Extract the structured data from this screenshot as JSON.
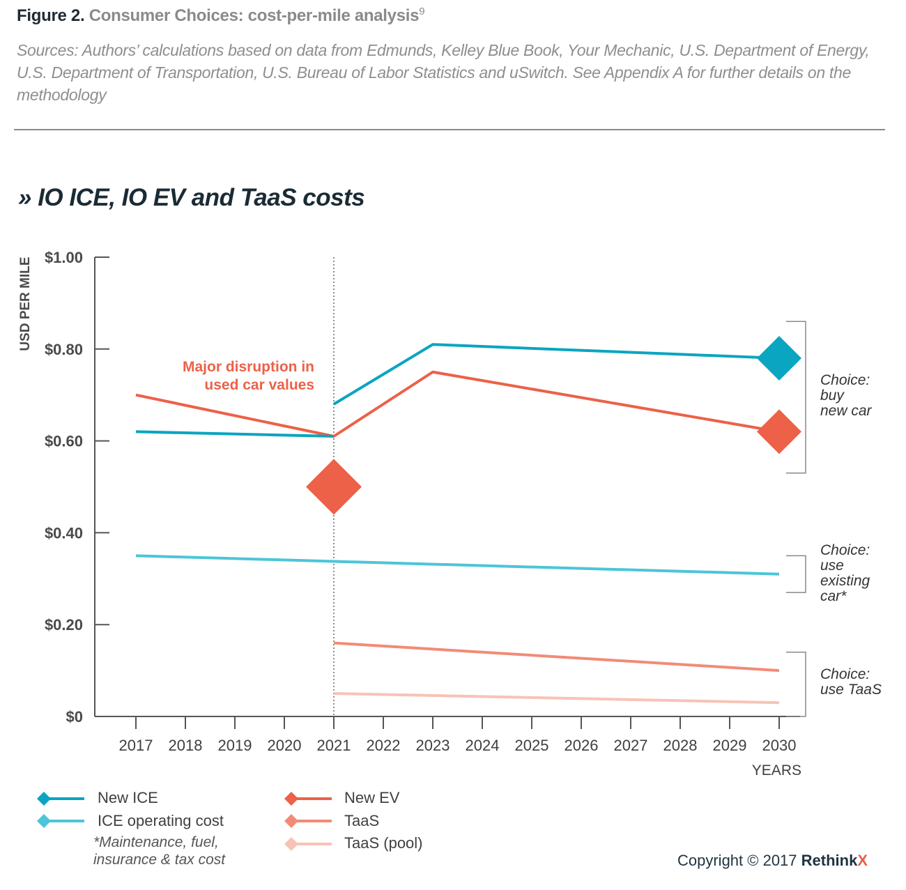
{
  "header": {
    "figure_label": "Figure 2.",
    "figure_title": "Consumer Choices: cost-per-mile analysis",
    "footnote_ref": "9",
    "sources": "Sources: Authors’ calculations based on data from Edmunds, Kelley Blue Book, Your Mechanic, U.S. Department of Energy, U.S. Department of Transportation, U.S. Bureau of Labor Statistics and uSwitch.  See Appendix A for further details on the methodology"
  },
  "chart_data": {
    "type": "line",
    "title": "» IO ICE, IO EV and TaaS costs",
    "ylabel": "USD PER MILE",
    "xlabel": "YEARS",
    "ylim": [
      0,
      1.0
    ],
    "xlim": [
      2017,
      2030
    ],
    "x_ticks": [
      "2017",
      "2018",
      "2019",
      "2020",
      "2021",
      "2022",
      "2023",
      "2024",
      "2025",
      "2026",
      "2027",
      "2028",
      "2029",
      "2030"
    ],
    "y_ticks": [
      {
        "value": 1.0,
        "label": "$1.00"
      },
      {
        "value": 0.8,
        "label": "$0.80"
      },
      {
        "value": 0.6,
        "label": "$0.60"
      },
      {
        "value": 0.4,
        "label": "$0.40"
      },
      {
        "value": 0.2,
        "label": "$0.20"
      },
      {
        "value": 0,
        "label": "$0"
      }
    ],
    "grid": false,
    "series": [
      {
        "name": "New ICE",
        "color": "#0aa5c0",
        "segments": [
          [
            [
              2017,
              0.62
            ],
            [
              2021,
              0.61
            ]
          ],
          [
            [
              2021,
              0.68
            ],
            [
              2023,
              0.81
            ],
            [
              2030,
              0.78
            ]
          ]
        ]
      },
      {
        "name": "New EV",
        "color": "#ec6148",
        "segments": [
          [
            [
              2017,
              0.7
            ],
            [
              2021,
              0.61
            ],
            [
              2023,
              0.75
            ],
            [
              2030,
              0.62
            ]
          ]
        ]
      },
      {
        "name": "ICE operating cost",
        "color": "#4cc5d8",
        "segments": [
          [
            [
              2017,
              0.35
            ],
            [
              2030,
              0.31
            ]
          ]
        ]
      },
      {
        "name": "TaaS",
        "color": "#f28b76",
        "segments": [
          [
            [
              2021,
              0.16
            ],
            [
              2030,
              0.1
            ]
          ]
        ]
      },
      {
        "name": "TaaS (pool)",
        "color": "#f7c3b6",
        "segments": [
          [
            [
              2021,
              0.05
            ],
            [
              2030,
              0.03
            ]
          ]
        ]
      }
    ],
    "vertical_marker": {
      "x": 2021,
      "style": "dotted"
    },
    "annotation": {
      "lines": [
        "Major disruption in",
        "used car values"
      ],
      "color": "#ec6148"
    },
    "markers": [
      {
        "name": "lightning-marker",
        "icon": "lightning-icon",
        "x": 2021,
        "y": 0.5,
        "color": "#ec6148"
      },
      {
        "name": "new-ice-end-marker",
        "icon": "car-icon",
        "x": 2030,
        "y": 0.78,
        "color": "#0aa5c0"
      },
      {
        "name": "new-ev-end-marker",
        "icon": "car-icon",
        "x": 2030,
        "y": 0.62,
        "color": "#ec6148"
      }
    ],
    "choices": [
      {
        "lines": [
          "Choice:",
          "buy",
          "new car"
        ],
        "range": [
          0.53,
          0.86
        ]
      },
      {
        "lines": [
          "Choice:",
          "use",
          "existing",
          "car*"
        ],
        "range": [
          0.27,
          0.35
        ]
      },
      {
        "lines": [
          "Choice:",
          "use TaaS"
        ],
        "range": [
          0,
          0.14
        ]
      }
    ]
  },
  "legend": {
    "items": [
      {
        "label": "New ICE",
        "color": "#0aa5c0"
      },
      {
        "label": "ICE operating cost",
        "color": "#4cc5d8"
      },
      {
        "label": "New EV",
        "color": "#ec6148"
      },
      {
        "label": "TaaS",
        "color": "#f28b76"
      },
      {
        "label": "TaaS (pool)",
        "color": "#f7c3b6"
      }
    ],
    "note_lines": [
      "*Maintenance, fuel,",
      "insurance & tax cost"
    ]
  },
  "footer": {
    "copyright": "Copyright © 2017 ",
    "brand": "Rethink",
    "brand_x": "X"
  }
}
